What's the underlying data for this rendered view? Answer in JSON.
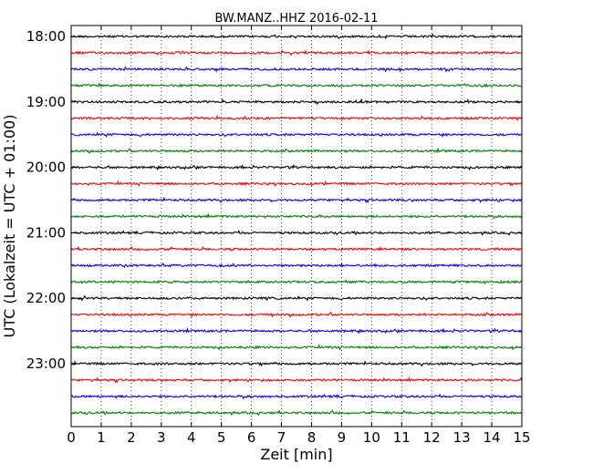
{
  "chart_data": {
    "type": "line",
    "title": "BW.MANZ..HHZ 2016-02-11",
    "xlabel": "Zeit  [min]",
    "ylabel": "UTC (Lokalzeit = UTC + 01:00)",
    "xlim": [
      0,
      15
    ],
    "x_ticks": [
      "0",
      "1",
      "2",
      "3",
      "4",
      "5",
      "6",
      "7",
      "8",
      "9",
      "10",
      "11",
      "12",
      "13",
      "14",
      "15"
    ],
    "y_ticks": [
      {
        "label": "18:00",
        "row": 0
      },
      {
        "label": "19:00",
        "row": 4
      },
      {
        "label": "20:00",
        "row": 8
      },
      {
        "label": "21:00",
        "row": 12
      },
      {
        "label": "22:00",
        "row": 16
      },
      {
        "label": "23:00",
        "row": 20
      }
    ],
    "rows": [
      {
        "start": "18:00",
        "color": "#000000"
      },
      {
        "start": "18:15",
        "color": "#ff0000"
      },
      {
        "start": "18:30",
        "color": "#0000ff"
      },
      {
        "start": "18:45",
        "color": "#008000"
      },
      {
        "start": "19:00",
        "color": "#000000"
      },
      {
        "start": "19:15",
        "color": "#ff0000"
      },
      {
        "start": "19:30",
        "color": "#0000ff"
      },
      {
        "start": "19:45",
        "color": "#008000"
      },
      {
        "start": "20:00",
        "color": "#000000"
      },
      {
        "start": "20:15",
        "color": "#ff0000"
      },
      {
        "start": "20:30",
        "color": "#0000ff"
      },
      {
        "start": "20:45",
        "color": "#008000"
      },
      {
        "start": "21:00",
        "color": "#000000"
      },
      {
        "start": "21:15",
        "color": "#ff0000"
      },
      {
        "start": "21:30",
        "color": "#0000ff"
      },
      {
        "start": "21:45",
        "color": "#008000"
      },
      {
        "start": "22:00",
        "color": "#000000"
      },
      {
        "start": "22:15",
        "color": "#ff0000"
      },
      {
        "start": "22:30",
        "color": "#0000ff"
      },
      {
        "start": "22:45",
        "color": "#008000"
      },
      {
        "start": "23:00",
        "color": "#000000"
      },
      {
        "start": "23:15",
        "color": "#ff0000"
      },
      {
        "start": "23:30",
        "color": "#0000ff"
      },
      {
        "start": "23:45",
        "color": "#008000"
      }
    ],
    "grid": "vertical-dotted"
  }
}
